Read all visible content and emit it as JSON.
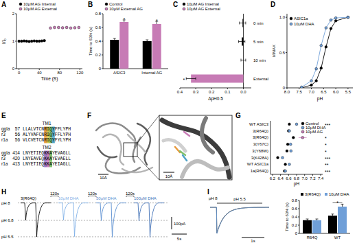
{
  "panel_labels": [
    "A",
    "B",
    "C",
    "D",
    "E",
    "F",
    "G",
    "H",
    "I"
  ],
  "chart_data": [
    {
      "type": "scatter",
      "x_label": "Time (S)",
      "y_label": "I/I₀",
      "xlim": [
        -5,
        125
      ],
      "xticks": [
        0,
        40,
        80,
        120
      ],
      "ylim": [
        0,
        2
      ],
      "yticks": [
        0,
        1,
        2
      ],
      "series": [
        {
          "name": "10μM AG Internal",
          "color": "#000000",
          "marker": "circle",
          "x": [
            0,
            5,
            10,
            15,
            20,
            25,
            30,
            35,
            40,
            45,
            50
          ],
          "values": [
            1.0,
            1.0,
            1.01,
            1.0,
            0.99,
            1.0,
            1.01,
            1.0,
            1.0,
            1.01,
            1.02
          ]
        },
        {
          "name": "10μM AG External",
          "color": "#c77bb5",
          "marker": "circle",
          "x": [
            62,
            70,
            78,
            86,
            94,
            102,
            110,
            118
          ],
          "values": [
            1.48,
            1.5,
            1.5,
            1.49,
            1.5,
            1.48,
            1.49,
            1.5
          ]
        }
      ]
    },
    {
      "type": "bar",
      "y_label": "Time to 63% (s)",
      "categories": [
        "ASIC3",
        "Internal AG"
      ],
      "ylim": [
        0,
        0.8
      ],
      "yticks": [
        0,
        0.2,
        0.4,
        0.6,
        0.8
      ],
      "series": [
        {
          "name": "Control",
          "color": "#000000",
          "values": [
            0.42,
            0.4
          ],
          "errors": [
            0.02,
            0.02
          ]
        },
        {
          "name": "10μM External AG",
          "color": "#c77bb5",
          "values": [
            0.68,
            0.65
          ],
          "errors": [
            0.03,
            0.04
          ]
        }
      ],
      "significance": [
        "*",
        "*"
      ]
    },
    {
      "type": "bar",
      "orientation": "horizontal",
      "x_label": "ΔpH0.5",
      "categories": [
        "0 min",
        "5 min",
        "10 min",
        "External"
      ],
      "xlim": [
        0.4,
        -0.05
      ],
      "xticks": [
        0.4,
        0.3,
        0.2,
        0.1,
        {
          "value": 0,
          "label": "0.0"
        }
      ],
      "series": [
        {
          "name": "10μM AG Internal",
          "color": "#000000",
          "values": [
            0.005,
            0.01,
            0.0,
            null
          ],
          "errors": [
            0.02,
            0.02,
            0.015,
            null
          ]
        },
        {
          "name": "10μM AG External",
          "color": "#c77bb5",
          "values": [
            null,
            null,
            null,
            0.33
          ],
          "errors": [
            null,
            null,
            null,
            0.03
          ]
        }
      ],
      "significance": [
        null,
        null,
        null,
        "*"
      ]
    },
    {
      "type": "line",
      "x_label": "pH",
      "y_label": "I/IMAX",
      "xlim": [
        8.0,
        5.3
      ],
      "xticks": [
        {
          "value": 8,
          "label": "8.0"
        },
        7.5,
        {
          "value": 7,
          "label": "7.0"
        },
        6.5,
        {
          "value": 6,
          "label": "6.0"
        },
        5.5
      ],
      "ylim": [
        0,
        1.05
      ],
      "yticks": [
        0,
        0.5,
        {
          "value": 1,
          "label": "1.0"
        }
      ],
      "legend": "upper left",
      "series": [
        {
          "name": "ASIC1a",
          "color": "#000000",
          "marker": "circle",
          "x": [
            7.4,
            7.0,
            6.8,
            6.6,
            6.4,
            6.2,
            6.0,
            5.5
          ],
          "values": [
            0.0,
            0.04,
            0.1,
            0.28,
            0.58,
            0.84,
            0.95,
            1.0
          ]
        },
        {
          "name": "10μM DHA",
          "color": "#6f9fd8",
          "marker": "circle",
          "x": [
            7.4,
            7.0,
            6.8,
            6.6,
            6.4,
            6.2,
            6.0,
            5.5
          ],
          "values": [
            0.01,
            0.1,
            0.27,
            0.6,
            0.85,
            0.96,
            0.99,
            1.0
          ]
        }
      ]
    },
    {
      "type": "scatter",
      "orientation": "horizontal",
      "x_label": "pH",
      "categories": [
        "WT ASIC3",
        "3(R64Q)",
        "3(R64Q)",
        "3(Y67C)",
        "3(Y68W)",
        "3(K428A)",
        "WT ASIC1a",
        "1a(R64Q)"
      ],
      "xlim": [
        6.15,
        7.45
      ],
      "xticks": [
        6.2,
        6.4,
        6.6,
        6.8,
        {
          "value": 7,
          "label": "7.0"
        },
        7.2,
        7.4
      ],
      "legend": "upper right",
      "series": [
        {
          "name": "Control",
          "color": "#000000",
          "marker": "circle",
          "values": [
            6.62,
            6.6,
            6.72,
            6.58,
            6.56,
            6.33,
            6.52,
            6.5
          ],
          "errors": [
            0.02,
            0.02,
            0.03,
            0.02,
            0.02,
            0.02,
            0.02,
            0.02
          ]
        },
        {
          "name": "10μM DHA",
          "color": "#6f9fd8",
          "marker": "circle",
          "values": [
            6.8,
            6.62,
            null,
            6.65,
            6.66,
            6.45,
            6.62,
            6.52
          ],
          "errors": [
            0.02,
            0.02,
            null,
            0.02,
            0.02,
            0.02,
            0.02,
            0.02
          ]
        },
        {
          "name": "10μM AG",
          "color": "#c77bb5",
          "marker": "circle",
          "values": [
            null,
            null,
            6.95,
            null,
            null,
            null,
            null,
            null
          ],
          "errors": [
            null,
            null,
            0.1,
            null,
            null,
            null,
            null,
            null
          ]
        }
      ],
      "significance": [
        "***",
        null,
        "*",
        "*",
        "*",
        "***",
        "**",
        "***"
      ]
    },
    {
      "type": "line",
      "ylim": [
        -300,
        20
      ],
      "series": [
        {
          "name": "3(R64Q)",
          "color": "#000000",
          "peaks": [
            -140,
            -272
          ]
        },
        {
          "name": "10μM DHA",
          "color": "#7fb0e6",
          "peaks": [
            -138,
            -270
          ]
        },
        {
          "name": "50μM DHA",
          "color": "#5a8fd0",
          "peaks": [
            -142,
            -275
          ]
        },
        {
          "name": "100μM DHA",
          "color": "#3f6fb5",
          "peaks": [
            -145,
            -276
          ]
        }
      ],
      "intervals": [
        "120s",
        "120s",
        "120s"
      ],
      "levels": [
        {
          "value": 0,
          "label": "pH 8"
        },
        {
          "value": -140,
          "label": "pH 6.8"
        },
        {
          "value": -272,
          "label": "pH 5.5"
        }
      ],
      "scale_bar": {
        "y": 100,
        "y_label": "100pA",
        "x": 5,
        "x_label": "5s"
      }
    },
    {
      "type": "line",
      "xlim": [
        0,
        2.6
      ],
      "baseline_label": "pH 8",
      "stimulus": {
        "label": "pH 5.5",
        "start": 0.3,
        "end": 2.3
      },
      "series": [
        {
          "color": "#000000",
          "tau": 0.32
        },
        {
          "color": "#6f9fd8",
          "tau": 0.33
        }
      ],
      "scale_bar": {
        "x": 1,
        "x_label": "1s"
      }
    },
    {
      "type": "bar",
      "y_label": "Time to 63% (s)",
      "categories": [
        "R64Q",
        "WT"
      ],
      "ylim": [
        0,
        0.8
      ],
      "yticks": [
        0,
        0.2,
        0.4,
        0.6,
        0.8
      ],
      "series": [
        {
          "name": "3(R64Q)",
          "color": "#000000",
          "values": [
            0.32,
            0.43
          ],
          "errors": [
            0.03,
            0.04
          ]
        },
        {
          "name": "10μM DHA",
          "color": "#6f9fd8",
          "values": [
            0.32,
            0.65
          ],
          "errors": [
            0.03,
            0.06
          ]
        }
      ],
      "significance": [
        null,
        "*"
      ]
    }
  ],
  "alignment": {
    "groups": [
      {
        "label": "TM1",
        "rows": [
          {
            "species": "ggla",
            "start": 57,
            "sequence": "LLALVTCNRIQYFFLYPH"
          },
          {
            "species": "r3",
            "start": 56,
            "sequence": "ALYVAFCNRIQYFFLYPH"
          },
          {
            "species": "r1a",
            "start": 56,
            "sequence": "VLCVETCNRIQYFYLYPH"
          }
        ]
      },
      {
        "label": "TM2",
        "rows": [
          {
            "species": "ggla",
            "start": 414,
            "sequence": "LNYETIEQKKAYEVAGLL"
          },
          {
            "species": "r3",
            "start": 420,
            "sequence": "LNYEAVEQKKAYEVAELL"
          },
          {
            "species": "r1a",
            "start": 413,
            "sequence": "LNYETIEQKKAYEIAGLL"
          }
        ]
      }
    ]
  },
  "structure": {
    "scale_labels": [
      "10Å",
      "10Å"
    ]
  }
}
